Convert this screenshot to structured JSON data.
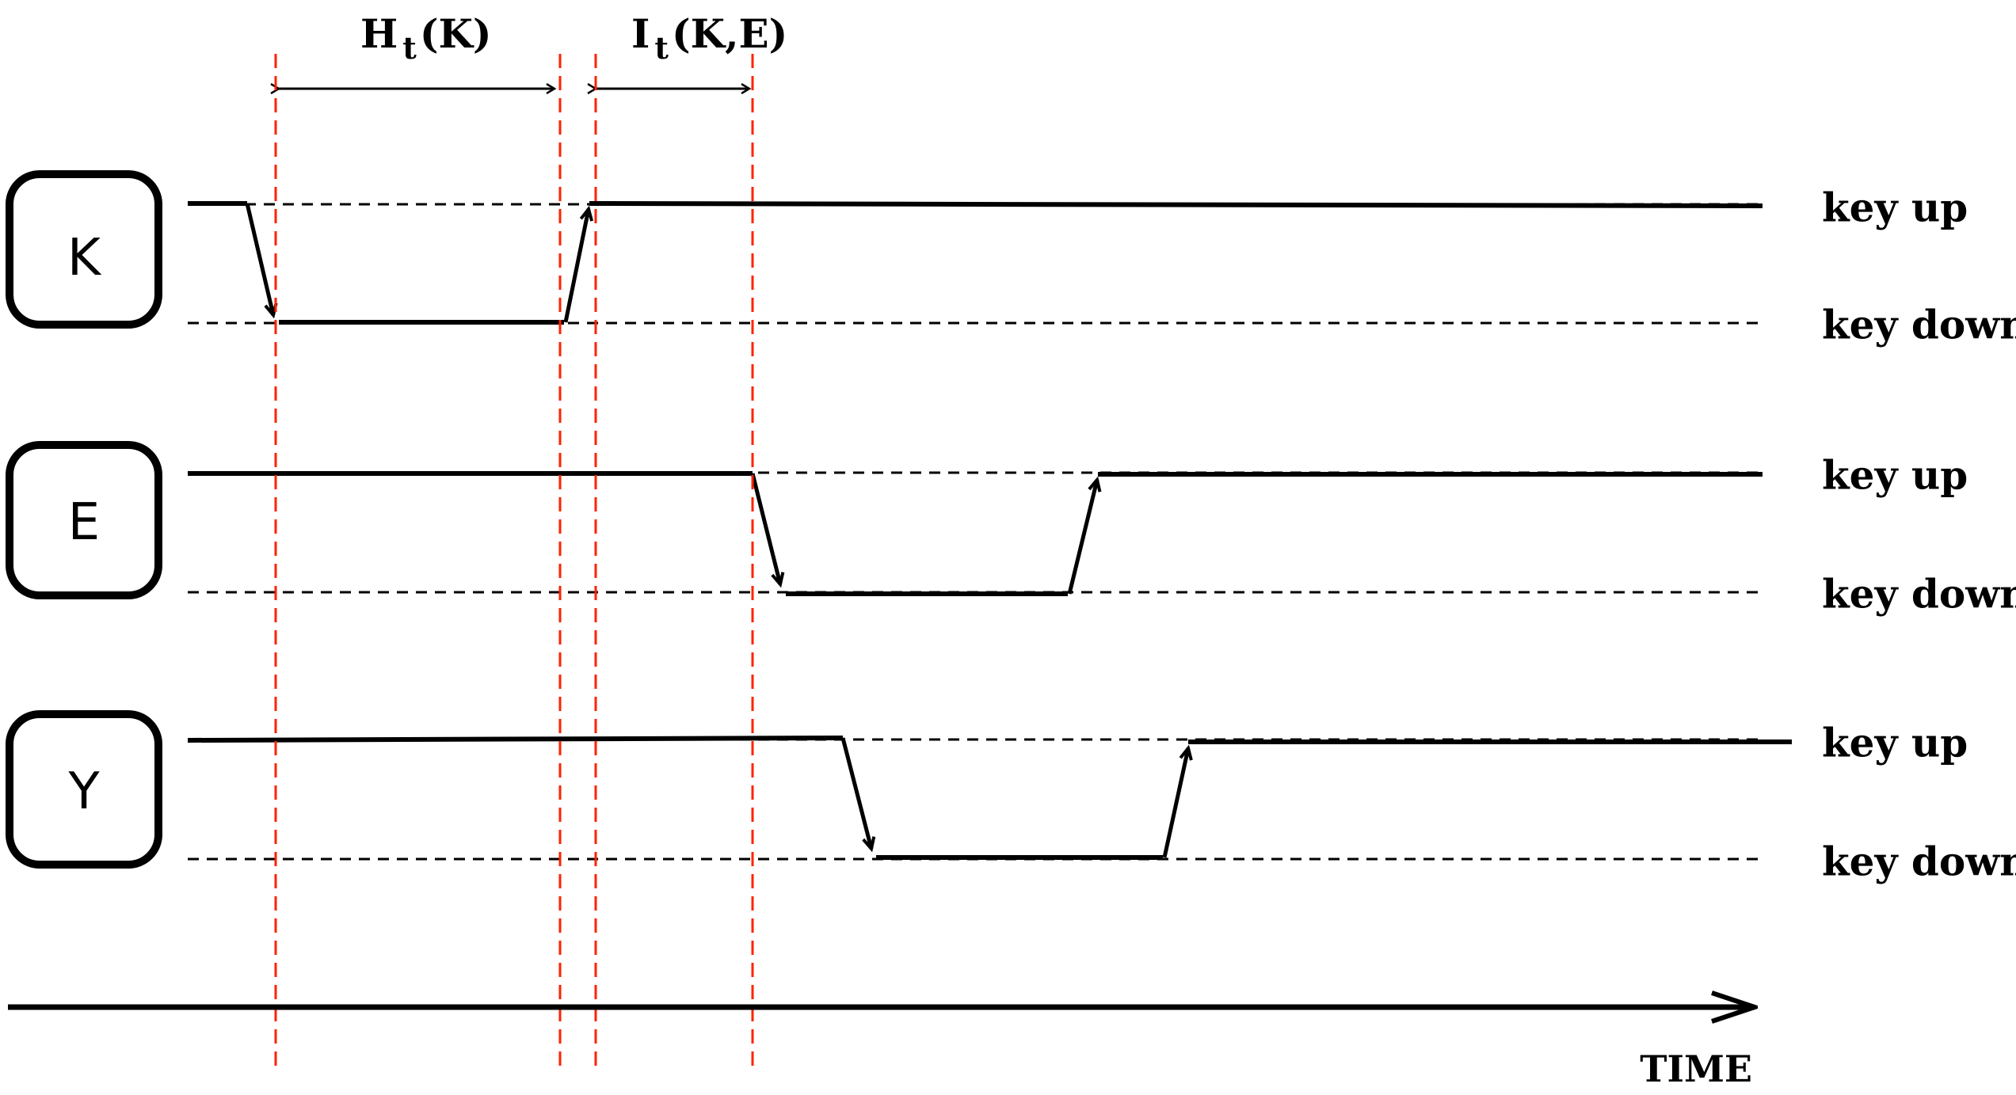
{
  "intervals": {
    "hold": {
      "main": "H",
      "sub": "t",
      "arg": "(K)"
    },
    "interkey": {
      "main": "I",
      "sub": "t",
      "arg": "(K,E)"
    }
  },
  "keys": [
    {
      "letter": "K",
      "up_label": "key up",
      "down_label": "key down"
    },
    {
      "letter": "E",
      "up_label": "key up",
      "down_label": "key down"
    },
    {
      "letter": "Y",
      "up_label": "key up",
      "down_label": "key down"
    }
  ],
  "axis": {
    "label": "TIME"
  },
  "colors": {
    "markers": "#ff2200",
    "signal": "#000000"
  }
}
